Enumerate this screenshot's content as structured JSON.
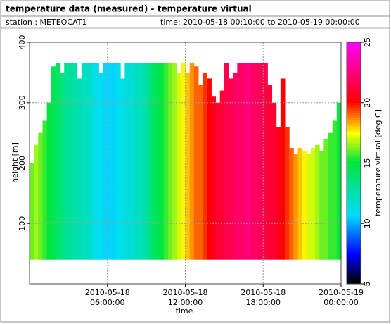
{
  "header": {
    "title": "temperature data (measured) - temperature virtual",
    "station": "station : METEOCAT1",
    "time": "time: 2010-05-18 00:10:00 to 2010-05-19 00:00:00"
  },
  "chart_data": {
    "type": "heatmap",
    "xlabel": "time",
    "ylabel": "height [m]",
    "colorbar_label": "temperature virtual [deg C]",
    "x": [
      10,
      30,
      50,
      70,
      90,
      110,
      130,
      150,
      170,
      190,
      210,
      230,
      250,
      270,
      290,
      310,
      330,
      350,
      370,
      390,
      410,
      430,
      450,
      470,
      490,
      510,
      530,
      550,
      570,
      590,
      610,
      630,
      650,
      670,
      690,
      710,
      730,
      750,
      770,
      790,
      810,
      830,
      850,
      870,
      890,
      910,
      930,
      950,
      970,
      990,
      1010,
      1030,
      1050,
      1070,
      1090,
      1110,
      1130,
      1150,
      1170,
      1190,
      1210,
      1230,
      1250,
      1270,
      1290,
      1310,
      1330,
      1350,
      1370,
      1390,
      1410,
      1430
    ],
    "cell_width": 20,
    "bottom": 40,
    "top": [
      200,
      230,
      250,
      270,
      300,
      360,
      365,
      350,
      365,
      365,
      365,
      340,
      365,
      365,
      365,
      365,
      350,
      365,
      365,
      365,
      365,
      340,
      365,
      365,
      365,
      365,
      365,
      365,
      365,
      365,
      365,
      365,
      365,
      365,
      350,
      365,
      350,
      365,
      360,
      330,
      350,
      340,
      310,
      300,
      320,
      365,
      340,
      350,
      365,
      365,
      365,
      365,
      365,
      365,
      365,
      330,
      300,
      260,
      340,
      260,
      225,
      215,
      225,
      220,
      215,
      225,
      230,
      220,
      240,
      250,
      270,
      300
    ],
    "values": [
      16,
      16.5,
      16,
      15.5,
      15,
      14.5,
      14,
      13.5,
      13,
      13,
      12.5,
      12.5,
      12,
      12,
      11.5,
      11,
      11,
      10.5,
      10.5,
      10.5,
      11,
      11,
      11.5,
      11.5,
      12,
      12,
      12.5,
      13,
      14,
      14.5,
      15,
      15.5,
      16,
      16.5,
      17,
      17.5,
      18,
      18.5,
      19,
      19,
      19.5,
      20,
      20.5,
      21,
      21,
      21.5,
      21.5,
      22,
      22,
      22,
      22.5,
      22,
      22,
      21.5,
      21.5,
      21,
      21,
      20.5,
      20,
      19.5,
      19,
      18.5,
      18,
      17.5,
      17,
      17,
      16.5,
      16,
      16,
      15.5,
      15.5,
      15
    ],
    "xlim": [
      0,
      1440
    ],
    "xticks": [
      {
        "value": 360,
        "label": "2010-05-18 06:00:00"
      },
      {
        "value": 720,
        "label": "2010-05-18 12:00:00"
      },
      {
        "value": 1080,
        "label": "2010-05-18 18:00:00"
      },
      {
        "value": 1440,
        "label": "2010-05-19 00:00:00"
      }
    ],
    "ylim": [
      0,
      400
    ],
    "yticks": [
      100,
      200,
      300,
      400
    ],
    "clim": [
      5,
      25
    ],
    "cticks": [
      5,
      10,
      15,
      20,
      25
    ],
    "grid": true
  }
}
